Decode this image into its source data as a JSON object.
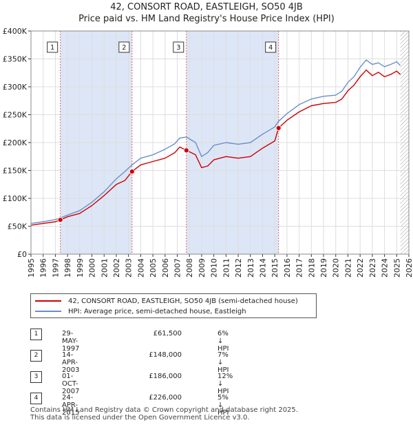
{
  "chart_data": {
    "type": "line",
    "title": "42, CONSORT ROAD, EASTLEIGH, SO50 4JB",
    "subtitle": "Price paid vs. HM Land Registry's House Price Index (HPI)",
    "x_ticks": [
      "1995",
      "1996",
      "1997",
      "1998",
      "1999",
      "2000",
      "2001",
      "2002",
      "2003",
      "2004",
      "2005",
      "2006",
      "2007",
      "2008",
      "2009",
      "2010",
      "2011",
      "2012",
      "2013",
      "2014",
      "2015",
      "2016",
      "2017",
      "2018",
      "2019",
      "2020",
      "2021",
      "2022",
      "2023",
      "2024",
      "2025",
      "2026"
    ],
    "y_ticks": [
      "£0",
      "£50K",
      "£100K",
      "£150K",
      "£200K",
      "£250K",
      "£300K",
      "£350K",
      "£400K"
    ],
    "xlim": [
      1995,
      2026
    ],
    "ylim": [
      0,
      400000
    ],
    "grid": true,
    "series": [
      {
        "name": "42, CONSORT ROAD, EASTLEIGH, SO50 4JB (semi-detached house)",
        "color": "#cc0000",
        "x": [
          1995.0,
          1996.0,
          1997.0,
          1997.41,
          1998.0,
          1999.0,
          2000.0,
          2001.0,
          2002.0,
          2002.7,
          2003.29,
          2004.0,
          2005.0,
          2006.0,
          2006.8,
          2007.2,
          2007.75,
          2008.5,
          2009.0,
          2009.5,
          2010.0,
          2011.0,
          2012.0,
          2013.0,
          2014.0,
          2015.0,
          2015.31,
          2016.0,
          2017.0,
          2018.0,
          2019.0,
          2020.0,
          2020.5,
          2021.0,
          2021.5,
          2022.0,
          2022.5,
          2023.0,
          2023.5,
          2024.0,
          2024.5,
          2025.0,
          2025.3
        ],
        "y": [
          52000,
          55000,
          58000,
          61500,
          67000,
          73000,
          87000,
          105000,
          125000,
          132000,
          148000,
          160000,
          166000,
          172000,
          182000,
          192000,
          186000,
          178000,
          155000,
          158000,
          169000,
          175000,
          172000,
          175000,
          190000,
          203000,
          226000,
          240000,
          255000,
          266000,
          270000,
          272000,
          278000,
          293000,
          303000,
          318000,
          330000,
          320000,
          326000,
          318000,
          322000,
          328000,
          322000
        ]
      },
      {
        "name": "HPI: Average price, semi-detached house, Eastleigh",
        "color": "#6a8fc8",
        "x": [
          1995.0,
          1996.0,
          1997.0,
          1997.41,
          1998.0,
          1999.0,
          2000.0,
          2001.0,
          2002.0,
          2002.7,
          2003.29,
          2004.0,
          2005.0,
          2006.0,
          2006.8,
          2007.2,
          2007.75,
          2008.5,
          2009.0,
          2009.5,
          2010.0,
          2011.0,
          2012.0,
          2013.0,
          2014.0,
          2015.0,
          2015.31,
          2016.0,
          2017.0,
          2018.0,
          2019.0,
          2020.0,
          2020.5,
          2021.0,
          2021.5,
          2022.0,
          2022.5,
          2023.0,
          2023.5,
          2024.0,
          2024.5,
          2025.0,
          2025.3
        ],
        "y": [
          55000,
          58000,
          62000,
          65000,
          70000,
          78000,
          93000,
          112000,
          135000,
          148000,
          160000,
          172000,
          178000,
          188000,
          198000,
          208000,
          210000,
          200000,
          175000,
          182000,
          195000,
          200000,
          197000,
          200000,
          215000,
          228000,
          238000,
          252000,
          268000,
          278000,
          283000,
          285000,
          292000,
          308000,
          318000,
          335000,
          348000,
          340000,
          343000,
          336000,
          340000,
          345000,
          338000
        ]
      }
    ],
    "transactions": [
      {
        "num": "1",
        "date": "29-MAY-1997",
        "price": "£61,500",
        "hpi": "6% ↓ HPI",
        "x": 1997.41,
        "y": 61500
      },
      {
        "num": "2",
        "date": "14-APR-2003",
        "price": "£148,000",
        "hpi": "7% ↓ HPI",
        "x": 2003.29,
        "y": 148000
      },
      {
        "num": "3",
        "date": "01-OCT-2007",
        "price": "£186,000",
        "hpi": "12% ↓ HPI",
        "x": 2007.75,
        "y": 186000
      },
      {
        "num": "4",
        "date": "24-APR-2015",
        "price": "£226,000",
        "hpi": "5% ↓ HPI",
        "x": 2015.31,
        "y": 226000
      }
    ],
    "shaded_ranges": [
      [
        1997.41,
        2003.29
      ],
      [
        2007.75,
        2015.31
      ]
    ],
    "future_hatch_from": 2025.3,
    "colors": {
      "shade": "#dde6f6",
      "grid": "#dddddd",
      "vline": "#e06060"
    }
  },
  "legend": {
    "property_label": "42, CONSORT ROAD, EASTLEIGH, SO50 4JB (semi-detached house)",
    "hpi_label": "HPI: Average price, semi-detached house, Eastleigh"
  },
  "footer": {
    "line1": "Contains HM Land Registry data © Crown copyright and database right 2025.",
    "line2": "This data is licensed under the Open Government Licence v3.0."
  }
}
